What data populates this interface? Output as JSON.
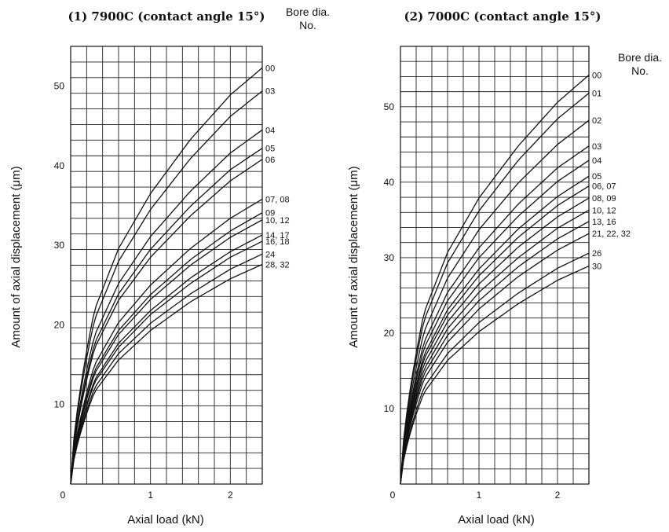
{
  "chart_data": [
    {
      "type": "line",
      "title": "(1) 7900C (contact angle 15°)",
      "xlabel": "Axial load (kN)",
      "ylabel": "Amount of axial displacement (μm)",
      "legend_title": [
        "Bore dia.",
        "No."
      ],
      "xlim": [
        0,
        2.4
      ],
      "ylim": [
        0,
        55
      ],
      "xticks": [
        "0",
        "1",
        "2"
      ],
      "yticks": [
        "10",
        "20",
        "30",
        "40",
        "50"
      ],
      "grid": true,
      "series": [
        {
          "name": "00",
          "x": [
            0,
            0.3,
            0.6,
            1,
            1.5,
            2,
            2.4
          ],
          "y": [
            0,
            21.9,
            29.6,
            36.5,
            43.3,
            48.9,
            52.3
          ]
        },
        {
          "name": "03",
          "x": [
            0,
            0.3,
            0.6,
            1,
            1.5,
            2,
            2.4
          ],
          "y": [
            0,
            20.7,
            28.0,
            34.5,
            40.9,
            46.2,
            49.4
          ]
        },
        {
          "name": "04",
          "x": [
            0,
            0.3,
            0.6,
            1,
            1.5,
            2,
            2.4
          ],
          "y": [
            0,
            18.7,
            25.2,
            31.1,
            36.8,
            41.6,
            44.5
          ]
        },
        {
          "name": "05",
          "x": [
            0,
            0.3,
            0.6,
            1,
            1.5,
            2,
            2.4
          ],
          "y": [
            0,
            17.7,
            23.9,
            29.5,
            34.9,
            39.5,
            42.2
          ]
        },
        {
          "name": "06",
          "x": [
            0,
            0.3,
            0.6,
            1,
            1.5,
            2,
            2.4
          ],
          "y": [
            0,
            17.1,
            23.1,
            28.5,
            33.7,
            38.1,
            40.8
          ]
        },
        {
          "name": "07, 08",
          "x": [
            0,
            0.3,
            0.6,
            1,
            1.5,
            2,
            2.4
          ],
          "y": [
            0,
            15.0,
            20.3,
            25.0,
            29.6,
            33.4,
            35.8
          ]
        },
        {
          "name": "09",
          "x": [
            0,
            0.3,
            0.6,
            1,
            1.5,
            2,
            2.4
          ],
          "y": [
            0,
            14.3,
            19.3,
            23.8,
            28.2,
            31.8,
            34.1
          ]
        },
        {
          "name": "10, 12",
          "x": [
            0,
            0.3,
            0.6,
            1,
            1.5,
            2,
            2.4
          ],
          "y": [
            0,
            13.9,
            18.8,
            23.2,
            27.5,
            31.0,
            33.2
          ]
        },
        {
          "name": "14, 17",
          "x": [
            0,
            0.3,
            0.6,
            1,
            1.5,
            2,
            2.4
          ],
          "y": [
            0,
            13.1,
            17.7,
            21.8,
            25.9,
            29.2,
            31.3
          ]
        },
        {
          "name": "16, 18",
          "x": [
            0,
            0.3,
            0.6,
            1,
            1.5,
            2,
            2.4
          ],
          "y": [
            0,
            12.8,
            17.2,
            21.3,
            25.2,
            28.5,
            30.5
          ]
        },
        {
          "name": "24",
          "x": [
            0,
            0.3,
            0.6,
            1,
            1.5,
            2,
            2.4
          ],
          "y": [
            0,
            12.1,
            16.4,
            20.2,
            23.9,
            27.0,
            28.9
          ]
        },
        {
          "name": "28, 32",
          "x": [
            0,
            0.3,
            0.6,
            1,
            1.5,
            2,
            2.4
          ],
          "y": [
            0,
            11.6,
            15.6,
            19.3,
            22.9,
            25.8,
            27.6
          ]
        }
      ]
    },
    {
      "type": "line",
      "title": "(2) 7000C (contact angle 15°)",
      "xlabel": "Axial load (kN)",
      "ylabel": "Amount of axial displacement (μm)",
      "legend_title": [
        "Bore dia.",
        "No."
      ],
      "xlim": [
        0,
        2.4
      ],
      "ylim": [
        0,
        58
      ],
      "xticks": [
        "0",
        "1",
        "2"
      ],
      "yticks": [
        "10",
        "20",
        "30",
        "40",
        "50"
      ],
      "grid": true,
      "series": [
        {
          "name": "00",
          "x": [
            0,
            0.3,
            0.6,
            1,
            1.5,
            2,
            2.4
          ],
          "y": [
            0,
            22.7,
            30.7,
            37.9,
            44.8,
            50.6,
            54.2
          ]
        },
        {
          "name": "01",
          "x": [
            0,
            0.3,
            0.6,
            1,
            1.5,
            2,
            2.4
          ],
          "y": [
            0,
            21.7,
            29.3,
            36.2,
            42.9,
            48.4,
            51.8
          ]
        },
        {
          "name": "02",
          "x": [
            0,
            0.3,
            0.6,
            1,
            1.5,
            2,
            2.4
          ],
          "y": [
            0,
            20.2,
            27.3,
            33.7,
            39.9,
            45.0,
            48.2
          ]
        },
        {
          "name": "03",
          "x": [
            0,
            0.3,
            0.6,
            1,
            1.5,
            2,
            2.4
          ],
          "y": [
            0,
            18.8,
            25.4,
            31.3,
            37.1,
            41.9,
            44.8
          ]
        },
        {
          "name": "04",
          "x": [
            0,
            0.3,
            0.6,
            1,
            1.5,
            2,
            2.4
          ],
          "y": [
            0,
            18.0,
            24.3,
            30.0,
            35.5,
            40.1,
            42.9
          ]
        },
        {
          "name": "05",
          "x": [
            0,
            0.3,
            0.6,
            1,
            1.5,
            2,
            2.4
          ],
          "y": [
            0,
            17.1,
            23.1,
            28.5,
            33.8,
            38.1,
            40.8
          ]
        },
        {
          "name": "06, 07",
          "x": [
            0,
            0.3,
            0.6,
            1,
            1.5,
            2,
            2.4
          ],
          "y": [
            0,
            16.6,
            22.4,
            27.6,
            32.7,
            36.9,
            39.5
          ]
        },
        {
          "name": "08, 09",
          "x": [
            0,
            0.3,
            0.6,
            1,
            1.5,
            2,
            2.4
          ],
          "y": [
            0,
            15.9,
            21.5,
            26.5,
            31.4,
            35.4,
            37.9
          ]
        },
        {
          "name": "10, 12",
          "x": [
            0,
            0.3,
            0.6,
            1,
            1.5,
            2,
            2.4
          ],
          "y": [
            0,
            15.2,
            20.6,
            25.4,
            30.0,
            33.9,
            36.3
          ]
        },
        {
          "name": "13, 16",
          "x": [
            0,
            0.3,
            0.6,
            1,
            1.5,
            2,
            2.4
          ],
          "y": [
            0,
            14.6,
            19.7,
            24.3,
            28.8,
            32.5,
            34.8
          ]
        },
        {
          "name": "21, 22, 32",
          "x": [
            0,
            0.3,
            0.6,
            1,
            1.5,
            2,
            2.4
          ],
          "y": [
            0,
            13.9,
            18.8,
            23.2,
            27.5,
            31.0,
            33.2
          ]
        },
        {
          "name": "26",
          "x": [
            0,
            0.3,
            0.6,
            1,
            1.5,
            2,
            2.4
          ],
          "y": [
            0,
            12.8,
            17.3,
            21.4,
            25.3,
            28.6,
            30.6
          ]
        },
        {
          "name": "30",
          "x": [
            0,
            0.3,
            0.6,
            1,
            1.5,
            2,
            2.4
          ],
          "y": [
            0,
            12.1,
            16.4,
            20.2,
            23.9,
            27.0,
            28.9
          ]
        }
      ]
    }
  ]
}
